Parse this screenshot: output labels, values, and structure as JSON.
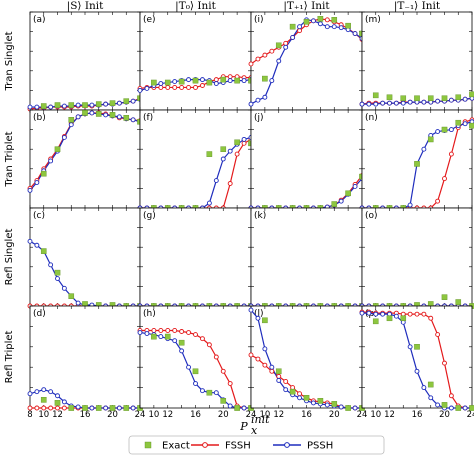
{
  "chart_data": {
    "type": "line",
    "x": [
      8,
      9,
      10,
      11,
      12,
      13,
      14,
      15,
      16,
      17,
      18,
      19,
      20,
      21,
      22,
      23,
      24
    ],
    "exact_x": [
      10,
      12,
      14,
      16,
      18,
      20,
      22,
      24
    ],
    "xlim": [
      8,
      24
    ],
    "ylim": [
      0,
      1
    ],
    "xticks": [
      8,
      10,
      12,
      14,
      16,
      18,
      20,
      22,
      24
    ],
    "xtick_labels": [
      "8",
      "",
      "12",
      "16",
      "20",
      "24"
    ],
    "xtick_label_values": [
      8,
      10,
      12,
      16,
      20,
      24
    ],
    "xlabel": "P",
    "xlabel_sub": "x",
    "xlabel_sup": "init",
    "column_titles": [
      "|S⟩ Init",
      "|T₀⟩ Init",
      "|T₊₁⟩ Init",
      "|T₋₁⟩ Init"
    ],
    "row_labels": [
      "Tran Singlet",
      "Tran Triplet",
      "Refl Singlet",
      "Refl Triplet"
    ],
    "legend": {
      "placement": "bottom-center",
      "entries": [
        {
          "name": "Exact",
          "color": "#8dc63f",
          "marker": "square"
        },
        {
          "name": "FSSH",
          "color": "#e41a1c",
          "marker": "open-circle"
        },
        {
          "name": "PSSH",
          "color": "#1f2dbd",
          "marker": "open-circle"
        }
      ]
    },
    "panels": [
      {
        "label": "(a)",
        "row": 0,
        "col": 0,
        "exact": [
          0.04,
          0.05,
          0.05,
          0.05,
          0.06,
          0.07,
          0.09,
          0.12
        ],
        "fssh": [
          0.01,
          0.02,
          0.02,
          0.03,
          0.03,
          0.03,
          0.03,
          0.04,
          0.04,
          0.04,
          0.05,
          0.06,
          0.06,
          0.07,
          0.08,
          0.09,
          0.12
        ],
        "pssh": [
          0.03,
          0.03,
          0.03,
          0.03,
          0.04,
          0.04,
          0.04,
          0.05,
          0.05,
          0.05,
          0.05,
          0.06,
          0.06,
          0.07,
          0.08,
          0.09,
          0.11
        ]
      },
      {
        "label": "(e)",
        "row": 0,
        "col": 1,
        "exact": [
          0.28,
          0.28,
          0.29,
          0.3,
          0.28,
          0.31,
          0.3,
          0.3
        ],
        "fssh": [
          0.22,
          0.23,
          0.23,
          0.23,
          0.23,
          0.23,
          0.23,
          0.23,
          0.23,
          0.25,
          0.29,
          0.31,
          0.34,
          0.34,
          0.34,
          0.33,
          0.33
        ],
        "pssh": [
          0.2,
          0.22,
          0.25,
          0.27,
          0.28,
          0.29,
          0.3,
          0.31,
          0.31,
          0.31,
          0.3,
          0.27,
          0.28,
          0.3,
          0.3,
          0.3,
          0.31
        ]
      },
      {
        "label": "(i)",
        "row": 0,
        "col": 2,
        "exact": [
          0.32,
          0.66,
          0.85,
          0.9,
          0.93,
          0.92,
          0.86,
          0.78
        ],
        "fssh": [
          0.47,
          0.52,
          0.56,
          0.6,
          0.64,
          0.68,
          0.74,
          0.81,
          0.87,
          0.91,
          0.93,
          0.92,
          0.9,
          0.87,
          0.83,
          0.78,
          0.72
        ],
        "pssh": [
          0.06,
          0.1,
          0.13,
          0.3,
          0.5,
          0.64,
          0.74,
          0.85,
          0.92,
          0.91,
          0.88,
          0.85,
          0.85,
          0.84,
          0.82,
          0.78,
          0.73
        ]
      },
      {
        "label": "(m)",
        "row": 0,
        "col": 3,
        "exact": [
          0.15,
          0.13,
          0.12,
          0.12,
          0.12,
          0.12,
          0.13,
          0.16
        ],
        "fssh": [
          0.06,
          0.07,
          0.07,
          0.07,
          0.07,
          0.07,
          0.08,
          0.08,
          0.08,
          0.08,
          0.08,
          0.09,
          0.09,
          0.1,
          0.1,
          0.11,
          0.12
        ],
        "pssh": [
          0.06,
          0.06,
          0.06,
          0.07,
          0.07,
          0.07,
          0.07,
          0.08,
          0.08,
          0.08,
          0.08,
          0.09,
          0.09,
          0.1,
          0.1,
          0.11,
          0.12
        ]
      },
      {
        "label": "(b)",
        "row": 1,
        "col": 0,
        "exact": [
          0.35,
          0.6,
          0.9,
          0.97,
          0.96,
          0.95,
          0.92,
          0.88
        ],
        "fssh": [
          0.2,
          0.28,
          0.4,
          0.5,
          0.6,
          0.73,
          0.86,
          0.93,
          0.96,
          0.97,
          0.97,
          0.96,
          0.94,
          0.92,
          0.91,
          0.9,
          0.89
        ],
        "pssh": [
          0.18,
          0.26,
          0.38,
          0.48,
          0.58,
          0.72,
          0.85,
          0.93,
          0.96,
          0.97,
          0.96,
          0.95,
          0.94,
          0.93,
          0.91,
          0.9,
          0.88
        ]
      },
      {
        "label": "(f)",
        "row": 1,
        "col": 1,
        "exact": [
          0.0,
          0.0,
          0.0,
          0.0,
          0.55,
          0.6,
          0.67,
          0.66
        ],
        "fssh": [
          0.0,
          0.0,
          0.0,
          0.0,
          0.0,
          0.0,
          0.0,
          0.0,
          0.0,
          0.0,
          0.0,
          0.0,
          0.0,
          0.25,
          0.55,
          0.66,
          0.7
        ],
        "pssh": [
          0.0,
          0.0,
          0.0,
          0.0,
          0.0,
          0.0,
          0.0,
          0.0,
          0.0,
          0.0,
          0.05,
          0.28,
          0.5,
          0.58,
          0.65,
          0.7,
          0.72
        ]
      },
      {
        "label": "(j)",
        "row": 1,
        "col": 2,
        "exact": [
          0.0,
          0.0,
          0.0,
          0.0,
          0.0,
          0.04,
          0.15,
          0.32
        ],
        "fssh": [
          0.0,
          0.0,
          0.0,
          0.0,
          0.0,
          0.0,
          0.0,
          0.0,
          0.0,
          0.0,
          0.0,
          0.01,
          0.03,
          0.08,
          0.15,
          0.24,
          0.33
        ],
        "pssh": [
          0.0,
          0.0,
          0.0,
          0.0,
          0.0,
          0.0,
          0.0,
          0.0,
          0.0,
          0.0,
          0.0,
          0.01,
          0.03,
          0.07,
          0.14,
          0.22,
          0.3
        ]
      },
      {
        "label": "(n)",
        "row": 1,
        "col": 3,
        "exact": [
          0.0,
          0.0,
          0.0,
          0.45,
          0.7,
          0.8,
          0.87,
          0.84
        ],
        "fssh": [
          0.0,
          0.0,
          0.0,
          0.0,
          0.0,
          0.0,
          0.0,
          0.0,
          0.0,
          0.0,
          0.0,
          0.07,
          0.3,
          0.55,
          0.82,
          0.88,
          0.9
        ],
        "pssh": [
          0.0,
          0.0,
          0.0,
          0.0,
          0.0,
          0.0,
          0.0,
          0.03,
          0.45,
          0.6,
          0.74,
          0.78,
          0.79,
          0.8,
          0.84,
          0.86,
          0.88
        ]
      },
      {
        "label": "(c)",
        "row": 2,
        "col": 0,
        "exact": [
          0.56,
          0.34,
          0.1,
          0.02,
          0.01,
          0.01,
          0.0,
          0.0
        ],
        "fssh": [
          0.0,
          0.0,
          0.0,
          0.0,
          0.0,
          0.0,
          0.0,
          0.0,
          0.0,
          0.0,
          0.0,
          0.0,
          0.0,
          0.0,
          0.0,
          0.0,
          0.0
        ],
        "pssh": [
          0.66,
          0.62,
          0.56,
          0.42,
          0.28,
          0.18,
          0.1,
          0.03,
          0.01,
          0.01,
          0.0,
          0.0,
          0.0,
          0.0,
          0.0,
          0.0,
          0.0
        ]
      },
      {
        "label": "(g)",
        "row": 2,
        "col": 1,
        "exact": [
          0.0,
          0.0,
          0.0,
          0.0,
          0.0,
          0.0,
          0.0,
          0.0
        ],
        "fssh": [
          0.0,
          0.0,
          0.0,
          0.0,
          0.0,
          0.0,
          0.0,
          0.0,
          0.0,
          0.0,
          0.0,
          0.0,
          0.0,
          0.0,
          0.0,
          0.0,
          0.0
        ],
        "pssh": [
          0.0,
          0.0,
          0.0,
          0.0,
          0.0,
          0.0,
          0.0,
          0.0,
          0.0,
          0.0,
          0.0,
          0.0,
          0.0,
          0.0,
          0.0,
          0.0,
          0.0
        ]
      },
      {
        "label": "(k)",
        "row": 2,
        "col": 2,
        "exact": [
          0.0,
          0.0,
          0.0,
          0.0,
          0.0,
          0.0,
          0.0,
          0.0
        ],
        "fssh": [
          0.0,
          0.0,
          0.0,
          0.0,
          0.0,
          0.0,
          0.0,
          0.0,
          0.0,
          0.0,
          0.0,
          0.0,
          0.0,
          0.0,
          0.0,
          0.0,
          0.0
        ],
        "pssh": [
          0.0,
          0.0,
          0.0,
          0.0,
          0.0,
          0.0,
          0.0,
          0.0,
          0.0,
          0.0,
          0.0,
          0.0,
          0.0,
          0.0,
          0.0,
          0.0,
          0.0
        ]
      },
      {
        "label": "(o)",
        "row": 2,
        "col": 3,
        "exact": [
          0.0,
          0.0,
          0.0,
          0.01,
          0.02,
          0.09,
          0.04,
          0.0
        ],
        "fssh": [
          0.0,
          0.0,
          0.0,
          0.0,
          0.0,
          0.0,
          0.0,
          0.0,
          0.0,
          0.0,
          0.0,
          0.0,
          0.0,
          0.0,
          0.0,
          0.0,
          0.0
        ],
        "pssh": [
          0.0,
          0.0,
          0.0,
          0.0,
          0.0,
          0.0,
          0.0,
          0.0,
          0.0,
          0.0,
          0.0,
          0.0,
          0.0,
          0.0,
          0.0,
          0.0,
          0.0
        ]
      },
      {
        "label": "(d)",
        "row": 3,
        "col": 0,
        "exact": [
          0.08,
          0.05,
          0.0,
          0.0,
          0.0,
          0.0,
          0.0,
          0.0
        ],
        "fssh": [
          0.0,
          0.0,
          0.0,
          0.0,
          0.0,
          0.0,
          0.0,
          0.0,
          0.0,
          0.0,
          0.0,
          0.0,
          0.0,
          0.0,
          0.0,
          0.0,
          0.0
        ],
        "pssh": [
          0.14,
          0.16,
          0.18,
          0.16,
          0.12,
          0.06,
          0.02,
          0.01,
          0.0,
          0.0,
          0.0,
          0.0,
          0.0,
          0.0,
          0.0,
          0.0,
          0.0
        ]
      },
      {
        "label": "(h)",
        "row": 3,
        "col": 1,
        "exact": [
          0.7,
          0.7,
          0.64,
          0.36,
          0.15,
          0.07,
          0.0,
          0.0
        ],
        "fssh": [
          0.76,
          0.76,
          0.76,
          0.76,
          0.76,
          0.76,
          0.75,
          0.74,
          0.72,
          0.68,
          0.62,
          0.5,
          0.36,
          0.24,
          0.02,
          0.0,
          0.0
        ],
        "pssh": [
          0.74,
          0.73,
          0.72,
          0.7,
          0.68,
          0.66,
          0.56,
          0.4,
          0.24,
          0.17,
          0.15,
          0.15,
          0.08,
          0.02,
          0.0,
          0.0,
          0.0
        ]
      },
      {
        "label": "(l)",
        "row": 3,
        "col": 2,
        "exact": [
          0.86,
          0.36,
          0.16,
          0.1,
          0.07,
          0.04,
          0.0,
          0.0
        ],
        "fssh": [
          0.52,
          0.48,
          0.42,
          0.36,
          0.31,
          0.26,
          0.2,
          0.14,
          0.1,
          0.07,
          0.06,
          0.05,
          0.04,
          0.01,
          0.0,
          0.0,
          0.0
        ],
        "pssh": [
          0.96,
          0.88,
          0.58,
          0.4,
          0.27,
          0.18,
          0.13,
          0.1,
          0.07,
          0.05,
          0.04,
          0.03,
          0.02,
          0.01,
          0.0,
          0.0,
          0.0
        ]
      },
      {
        "label": "(p)",
        "row": 3,
        "col": 3,
        "exact": [
          0.85,
          0.88,
          0.88,
          0.6,
          0.23,
          0.03,
          0.0,
          0.0
        ],
        "fssh": [
          0.94,
          0.94,
          0.93,
          0.93,
          0.93,
          0.93,
          0.92,
          0.92,
          0.92,
          0.92,
          0.88,
          0.72,
          0.44,
          0.12,
          0.02,
          0.0,
          0.0
        ],
        "pssh": [
          0.93,
          0.93,
          0.92,
          0.92,
          0.92,
          0.9,
          0.84,
          0.6,
          0.36,
          0.2,
          0.1,
          0.03,
          0.0,
          0.0,
          0.0,
          0.0,
          0.0
        ]
      }
    ]
  }
}
